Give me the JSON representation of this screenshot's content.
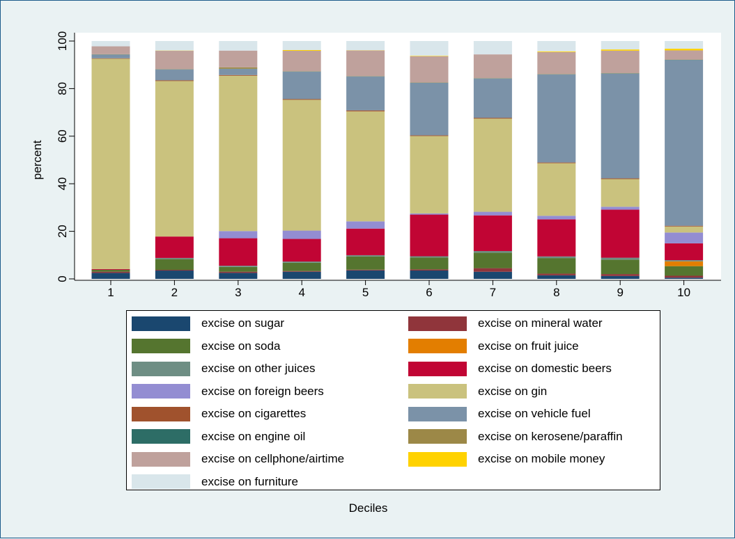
{
  "chart_data": {
    "type": "bar",
    "stacked": true,
    "percent": true,
    "xlabel": "Deciles",
    "ylabel": "percent",
    "ylim": [
      0,
      100
    ],
    "yticks": [
      0,
      20,
      40,
      60,
      80,
      100
    ],
    "categories": [
      "1",
      "2",
      "3",
      "4",
      "5",
      "6",
      "7",
      "8",
      "9",
      "10"
    ],
    "series": [
      {
        "name": "excise on sugar",
        "color": "#1a476f",
        "values": [
          2.5,
          3.5,
          2.5,
          3,
          3.5,
          3.5,
          3,
          1.5,
          1.2,
          0.5
        ]
      },
      {
        "name": "excise on mineral water",
        "color": "#90353b",
        "values": [
          0.5,
          0.3,
          0.5,
          0.3,
          0.3,
          0.5,
          1.5,
          0.7,
          0.8,
          0.8
        ]
      },
      {
        "name": "excise on soda",
        "color": "#55752f",
        "values": [
          0.8,
          4.5,
          2,
          3.5,
          5.5,
          5,
          6.5,
          6.5,
          6,
          4
        ]
      },
      {
        "name": "excise on fruit juice",
        "color": "#e37e00",
        "values": [
          0,
          0,
          0,
          0,
          0,
          0,
          0,
          0,
          0,
          2
        ]
      },
      {
        "name": "excise on other juices",
        "color": "#6e8e84",
        "values": [
          0,
          0.5,
          0.5,
          0.5,
          0.5,
          0.5,
          0.7,
          0.7,
          0.8,
          0.5
        ]
      },
      {
        "name": "excise on domestic beers",
        "color": "#c10534",
        "values": [
          0.3,
          9,
          11.5,
          9.5,
          11,
          17.5,
          15,
          15.5,
          20,
          7
        ]
      },
      {
        "name": "excise on foreign beers",
        "color": "#938dd2",
        "values": [
          0,
          0,
          3,
          3.5,
          3,
          0.5,
          1.5,
          1.5,
          1.2,
          4.5
        ]
      },
      {
        "name": "excise on gin",
        "color": "#cac27e",
        "values": [
          88,
          65.4,
          65,
          55,
          45.5,
          32.5,
          39.2,
          22,
          11.5,
          2.5
        ]
      },
      {
        "name": "excise on cigarettes",
        "color": "#a0522d",
        "values": [
          0.2,
          0.3,
          0.3,
          0.3,
          0.4,
          0.3,
          0.3,
          0.3,
          0.3,
          0.3
        ]
      },
      {
        "name": "excise on vehicle fuel",
        "color": "#7b92a8",
        "values": [
          1.5,
          4.5,
          2.5,
          11.5,
          14,
          22,
          16.5,
          36.8,
          43.6,
          69
        ]
      },
      {
        "name": "excise on engine oil",
        "color": "#2d6d66",
        "values": [
          0.1,
          0.1,
          0.1,
          0.1,
          0.1,
          0.1,
          0.1,
          0.1,
          0.1,
          0.1
        ]
      },
      {
        "name": "excise on kerosene/paraffin",
        "color": "#9c8847",
        "values": [
          0.1,
          0.1,
          0.6,
          0.1,
          0.1,
          0.1,
          0.1,
          0.1,
          0.1,
          0.1
        ]
      },
      {
        "name": "excise on cellphone/airtime",
        "color": "#bfa19c",
        "values": [
          3.3,
          7.7,
          7,
          8.6,
          10.6,
          11,
          10,
          9.2,
          9.3,
          3.8
        ]
      },
      {
        "name": "excise on mobile money",
        "color": "#ffd200",
        "values": [
          0,
          0.1,
          0,
          0.3,
          0.1,
          0.2,
          0,
          0.3,
          0.5,
          0.7
        ]
      },
      {
        "name": "excise on furniture",
        "color": "#d9e6eb",
        "values": [
          2.2,
          4.0,
          4.0,
          3.8,
          3.8,
          6.2,
          5.6,
          4.3,
          3.5,
          3.2
        ]
      }
    ]
  }
}
